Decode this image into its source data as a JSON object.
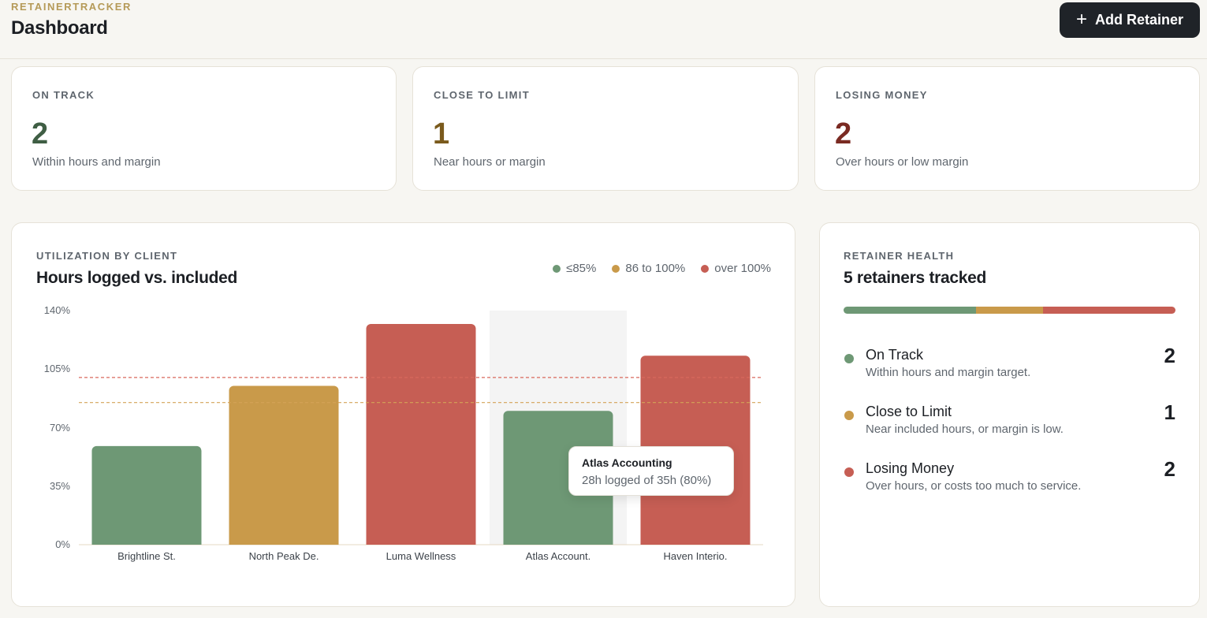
{
  "header": {
    "brand": "RETAINERTRACKER",
    "title": "Dashboard",
    "add_button_label": "Add Retainer",
    "add_button_icon": "plus-icon"
  },
  "stats": [
    {
      "label": "ON TRACK",
      "value": "2",
      "sub": "Within hours and margin",
      "color": "#3f5e44"
    },
    {
      "label": "CLOSE TO LIMIT",
      "value": "1",
      "sub": "Near hours or margin",
      "color": "#7a5a1c"
    },
    {
      "label": "LOSING MONEY",
      "value": "2",
      "sub": "Over hours or low margin",
      "color": "#7a2a22"
    }
  ],
  "utilization": {
    "section_label": "UTILIZATION BY CLIENT",
    "title": "Hours logged vs. included",
    "legend": [
      {
        "label": "≤85%",
        "color": "#6e9875"
      },
      {
        "label": "86 to 100%",
        "color": "#c99a4a"
      },
      {
        "label": "over 100%",
        "color": "#c65e54"
      }
    ],
    "tooltip": {
      "title": "Atlas Accounting",
      "sub": "28h logged of 35h (80%)"
    }
  },
  "chart_data": {
    "type": "bar",
    "categories": [
      "Brightline St.",
      "North Peak De.",
      "Luma Wellness",
      "Atlas Account.",
      "Haven Interio."
    ],
    "values": [
      59,
      95,
      132,
      80,
      113
    ],
    "bar_colors": [
      "#6e9875",
      "#c99a4a",
      "#c65e54",
      "#6e9875",
      "#c65e54"
    ],
    "yticks": [
      "0%",
      "35%",
      "70%",
      "105%",
      "140%"
    ],
    "ylim": [
      0,
      140
    ],
    "reference_lines": [
      {
        "value": 100,
        "color": "#d9685d",
        "style": "dashed"
      },
      {
        "value": 85,
        "color": "#d4a257",
        "style": "dashed"
      }
    ],
    "highlighted_category": "Atlas Account.",
    "grid": false
  },
  "health": {
    "section_label": "RETAINER HEALTH",
    "title": "5 retainers tracked",
    "segments": [
      {
        "value": 2,
        "color": "#6e9875"
      },
      {
        "value": 1,
        "color": "#c99a4a"
      },
      {
        "value": 2,
        "color": "#c65e54"
      }
    ],
    "rows": [
      {
        "name": "On Track",
        "sub": "Within hours and margin target.",
        "count": "2",
        "color": "#6e9875"
      },
      {
        "name": "Close to Limit",
        "sub": "Near included hours, or margin is low.",
        "count": "1",
        "color": "#c99a4a"
      },
      {
        "name": "Losing Money",
        "sub": "Over hours, or costs too much to service.",
        "count": "2",
        "color": "#c65e54"
      }
    ]
  }
}
